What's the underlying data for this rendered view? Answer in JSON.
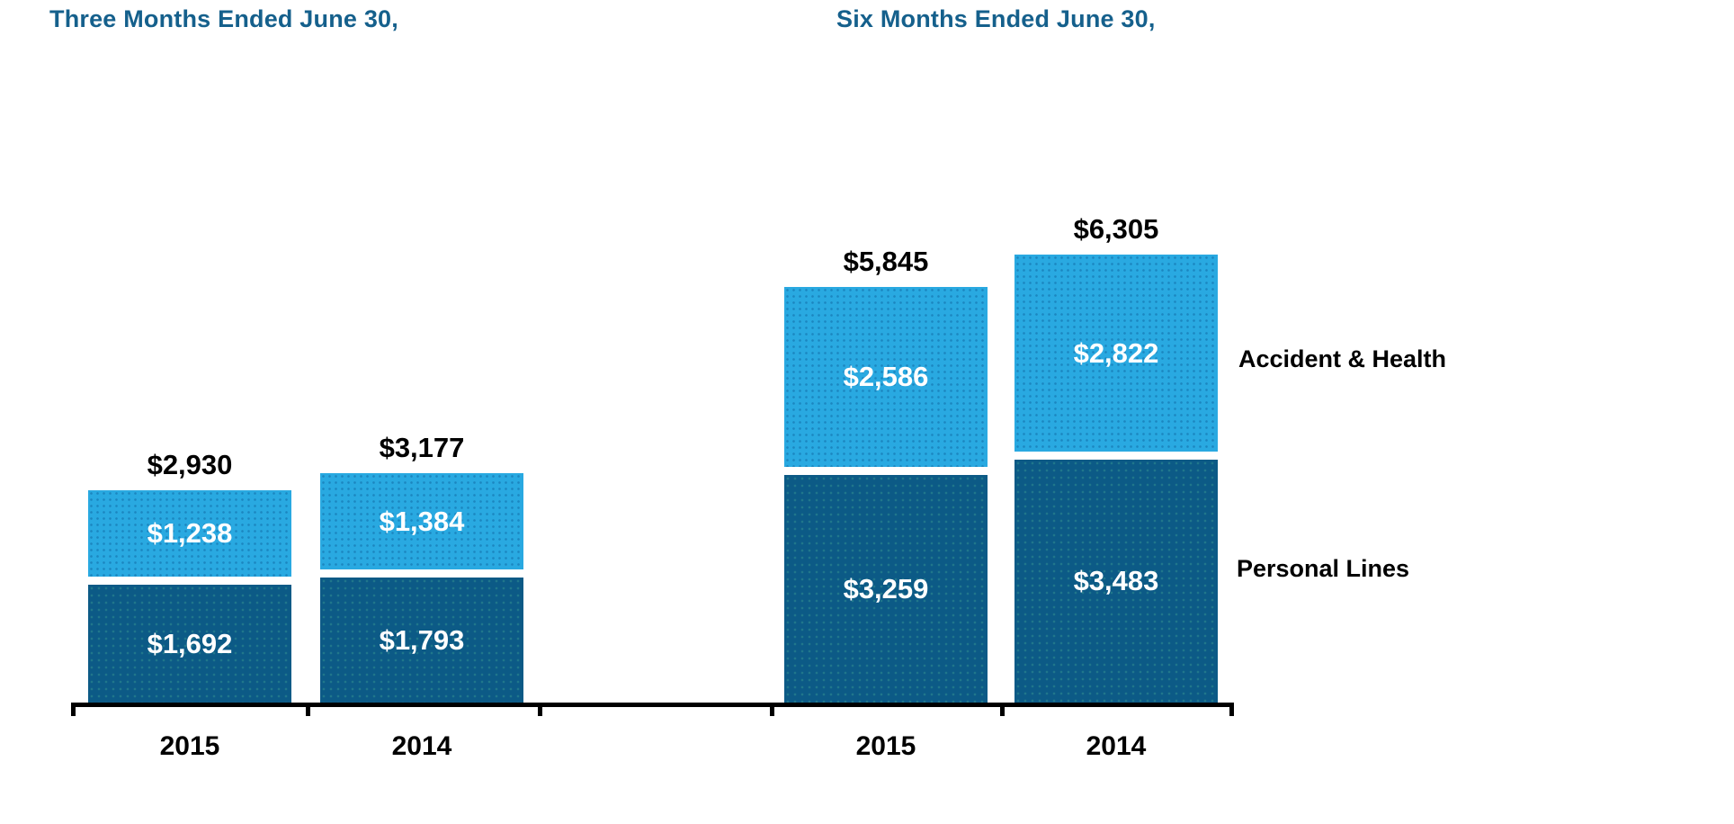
{
  "chart_data": {
    "type": "bar",
    "stacked": true,
    "legend_position": "right",
    "gridlines": false,
    "colors": {
      "accident_health": "#29A9E1",
      "personal_lines": "#0C5A86",
      "group_title": "#15608C",
      "total_label": "#000000",
      "value_label": "#FFFFFF",
      "axis": "#000000"
    },
    "legend": [
      {
        "label": "Accident & Health",
        "color": "#29A9E1"
      },
      {
        "label": "Personal Lines",
        "color": "#0C5A86"
      }
    ],
    "groups": [
      {
        "title": "Three Months Ended June 30,",
        "categories": [
          "2015",
          "2014"
        ],
        "totals": [
          2930,
          3177
        ],
        "total_labels": [
          "$2,930",
          "$3,177"
        ],
        "series": [
          {
            "name": "Accident & Health",
            "color": "#29A9E1",
            "values": [
              1238,
              1384
            ],
            "labels": [
              "$1,238",
              "$1,384"
            ]
          },
          {
            "name": "Personal Lines",
            "color": "#0C5A86",
            "values": [
              1692,
              1793
            ],
            "labels": [
              "$1,692",
              "$1,793"
            ]
          }
        ]
      },
      {
        "title": "Six Months Ended June 30,",
        "categories": [
          "2015",
          "2014"
        ],
        "totals": [
          5845,
          6305
        ],
        "total_labels": [
          "$5,845",
          "$6,305"
        ],
        "series": [
          {
            "name": "Accident & Health",
            "color": "#29A9E1",
            "values": [
              2586,
              2822
            ],
            "labels": [
              "$2,586",
              "$2,822"
            ]
          },
          {
            "name": "Personal Lines",
            "color": "#0C5A86",
            "values": [
              3259,
              3483
            ],
            "labels": [
              "$3,259",
              "$3,483"
            ]
          }
        ]
      }
    ]
  }
}
